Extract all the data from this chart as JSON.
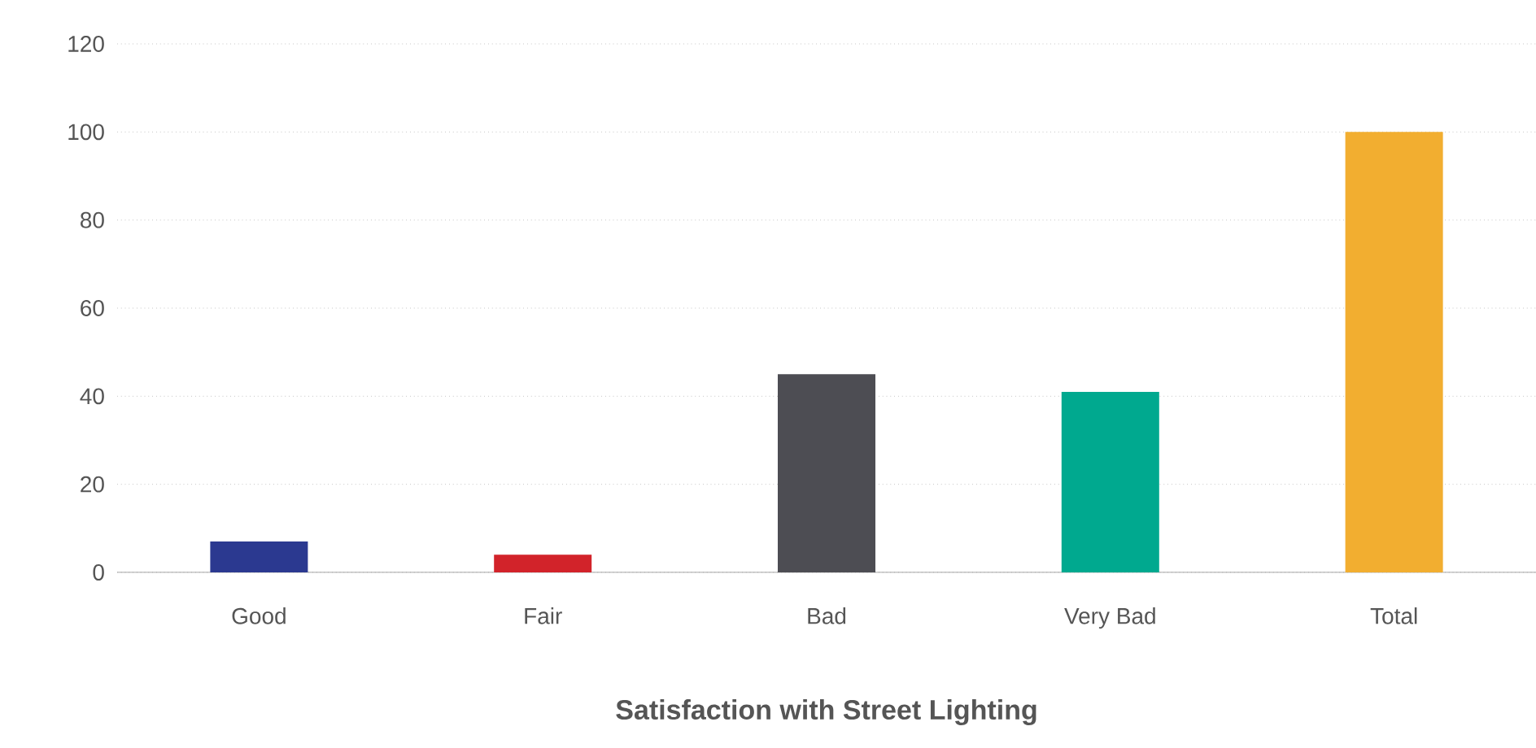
{
  "chart_data": {
    "type": "bar",
    "title": "Satisfaction with Street Lighting",
    "categories": [
      "Good",
      "Fair",
      "Bad",
      "Very Bad",
      "Total"
    ],
    "values": [
      7,
      4,
      45,
      41,
      100
    ],
    "colors": [
      "#2b3990",
      "#d2232a",
      "#4d4d53",
      "#00a98f",
      "#f2ae30"
    ],
    "ylim": [
      0,
      120
    ],
    "yticks": [
      0,
      20,
      40,
      60,
      80,
      100,
      120
    ],
    "grid": "y"
  }
}
